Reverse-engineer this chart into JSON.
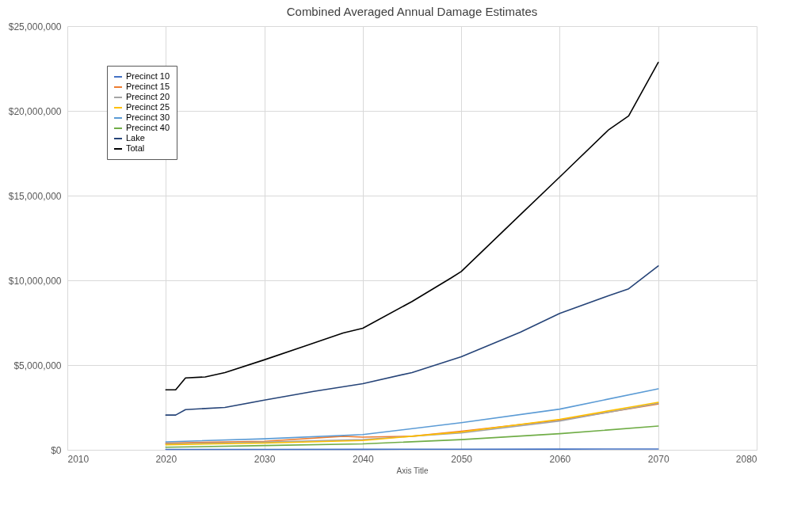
{
  "chart_data": {
    "type": "line",
    "title": "Combined Averaged Annual Damage Estimates",
    "xlabel": "Axis Title",
    "xlim": [
      2010,
      2080
    ],
    "xticks": [
      2010,
      2020,
      2030,
      2040,
      2050,
      2060,
      2070,
      2080
    ],
    "ylim": [
      0,
      25000000
    ],
    "yticks": [
      {
        "value": 0,
        "label": "$0"
      },
      {
        "value": 5000000,
        "label": "$5,000,000"
      },
      {
        "value": 10000000,
        "label": "$10,000,000"
      },
      {
        "value": 15000000,
        "label": "$15,000,000"
      },
      {
        "value": 20000000,
        "label": "$20,000,000"
      },
      {
        "value": 25000000,
        "label": "$25,000,000"
      }
    ],
    "grid": true,
    "legend": "top left",
    "marker": "none",
    "line_style": "solid",
    "series": [
      {
        "name": "Precinct 10",
        "color": "#4472c4",
        "x": [
          2020,
          2030,
          2040,
          2050,
          2060,
          2070
        ],
        "values": [
          20000,
          25000,
          30000,
          35000,
          40000,
          50000
        ]
      },
      {
        "name": "Precinct 15",
        "color": "#ed7d31",
        "x": [
          2020,
          2030,
          2038,
          2040,
          2045,
          2050,
          2060,
          2070
        ],
        "values": [
          400000,
          500000,
          800000,
          750000,
          800000,
          1100000,
          1750000,
          2700000
        ]
      },
      {
        "name": "Precinct 20",
        "color": "#a5a5a5",
        "x": [
          2020,
          2030,
          2040,
          2050,
          2060,
          2070
        ],
        "values": [
          350000,
          450000,
          600000,
          1000000,
          1700000,
          2750000
        ]
      },
      {
        "name": "Precinct 25",
        "color": "#ffc000",
        "x": [
          2020,
          2030,
          2040,
          2050,
          2060,
          2070
        ],
        "values": [
          300000,
          400000,
          550000,
          1050000,
          1800000,
          2800000
        ]
      },
      {
        "name": "Precinct 30",
        "color": "#5b9bd5",
        "x": [
          2020,
          2030,
          2040,
          2050,
          2060,
          2070
        ],
        "values": [
          470000,
          650000,
          900000,
          1600000,
          2400000,
          3600000
        ]
      },
      {
        "name": "Precinct 40",
        "color": "#70ad47",
        "x": [
          2020,
          2030,
          2040,
          2050,
          2060,
          2070
        ],
        "values": [
          150000,
          250000,
          350000,
          600000,
          950000,
          1400000
        ]
      },
      {
        "name": "Lake",
        "color": "#264478",
        "x": [
          2020,
          2021,
          2022,
          2026,
          2030,
          2035,
          2040,
          2045,
          2050,
          2056,
          2060,
          2065,
          2067,
          2070
        ],
        "values": [
          2050000,
          2050000,
          2370000,
          2500000,
          2930000,
          3450000,
          3900000,
          4560000,
          5490000,
          6940000,
          8050000,
          9100000,
          9500000,
          10850000
        ]
      },
      {
        "name": "Total",
        "color": "#000000",
        "x": [
          2020,
          2021,
          2022,
          2024,
          2026,
          2030,
          2034,
          2038,
          2040,
          2045,
          2049,
          2050,
          2056,
          2060,
          2065,
          2067,
          2070
        ],
        "values": [
          3540000,
          3540000,
          4240000,
          4300000,
          4560000,
          5310000,
          6100000,
          6890000,
          7170000,
          8750000,
          10150000,
          10520000,
          13870000,
          16100000,
          18900000,
          19700000,
          22860000
        ]
      }
    ]
  }
}
